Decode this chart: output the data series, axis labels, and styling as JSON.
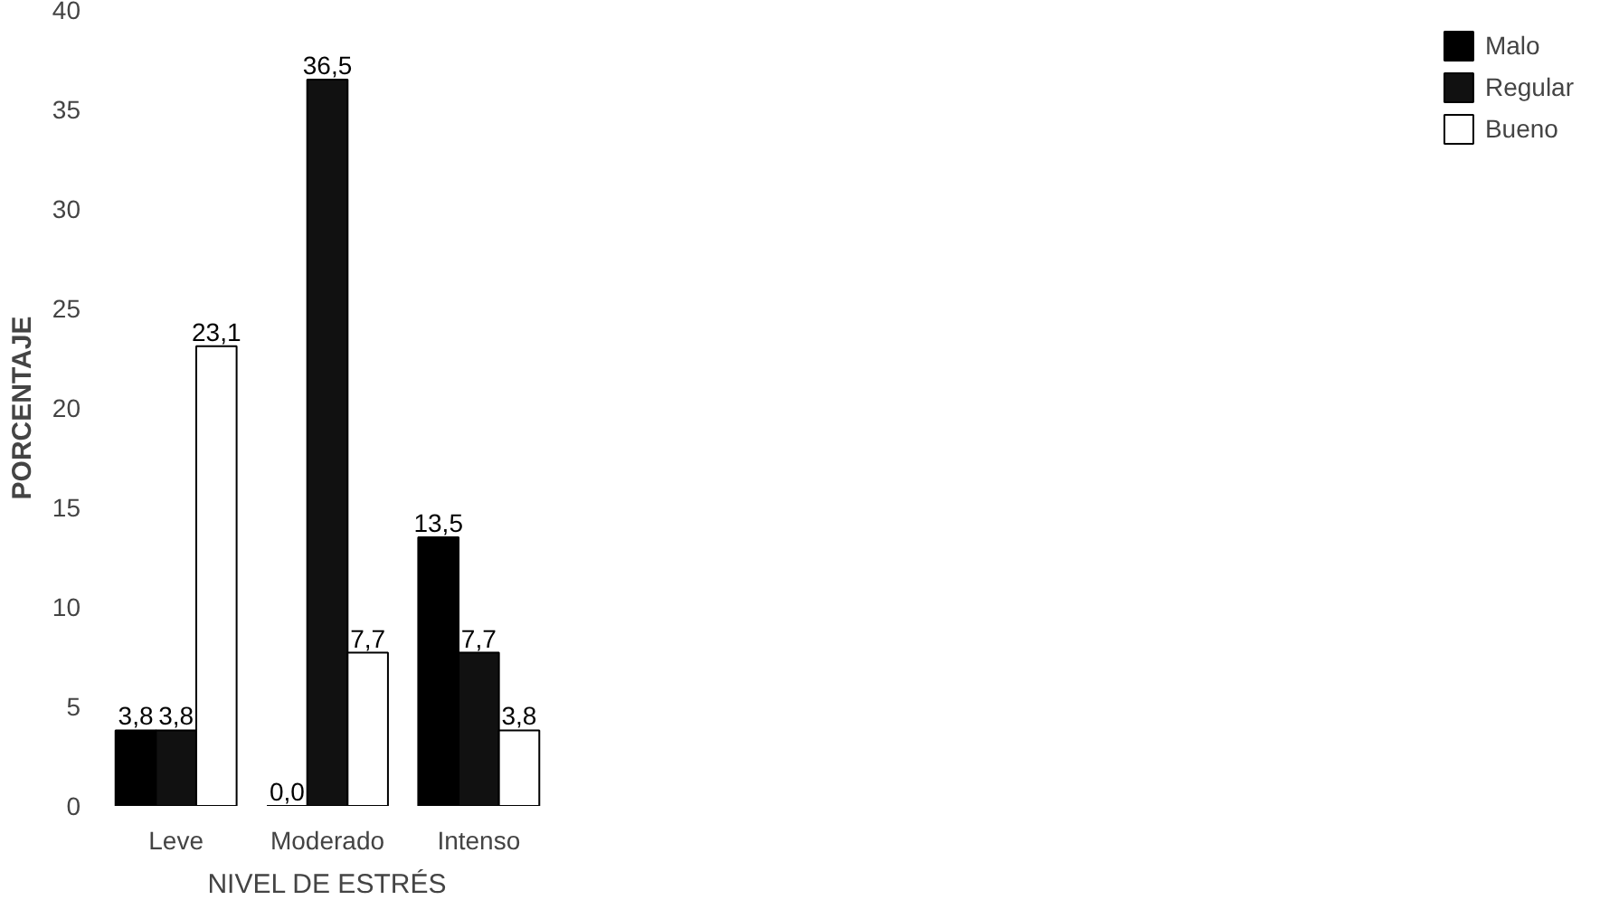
{
  "chart_data": {
    "type": "bar",
    "xlabel": "NIVEL DE ESTRÉS",
    "ylabel": "PORCENTAJE",
    "categories": [
      "Leve",
      "Moderado",
      "Intenso"
    ],
    "series": [
      {
        "name": "Malo",
        "color": "#000000",
        "values": [
          3.8,
          0.0,
          13.5
        ],
        "value_labels": [
          "3,8",
          "0,0",
          "13,5"
        ]
      },
      {
        "name": "Regular",
        "color": "#111111",
        "values": [
          3.8,
          36.5,
          7.7
        ],
        "value_labels": [
          "3,8",
          "36,5",
          "7,7"
        ]
      },
      {
        "name": "Bueno",
        "color": "#ffffff",
        "values": [
          23.1,
          7.7,
          3.8
        ],
        "value_labels": [
          "23,1",
          "7,7",
          "3,8"
        ]
      }
    ],
    "ylim": [
      0,
      40
    ],
    "yticks": [
      0,
      5,
      10,
      15,
      20,
      25,
      30,
      35,
      40
    ],
    "grid": false,
    "legend": "right"
  }
}
